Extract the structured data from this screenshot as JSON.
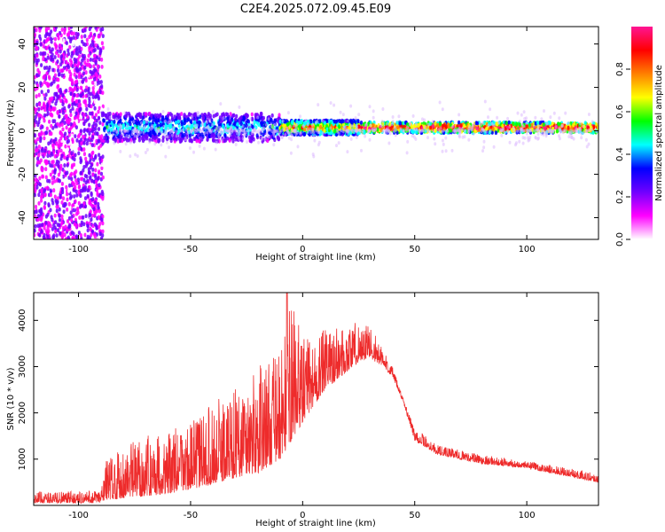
{
  "title": "C2E4.2025.072.09.45.E09",
  "colors": {
    "snr_line": "#ee2b2b",
    "background": "#ffffff",
    "axis": "#000000"
  },
  "chart_data": [
    {
      "type": "heatmap",
      "name": "spectrogram",
      "xlabel": "Height of straight line (km)",
      "ylabel": "Frequency (Hz)",
      "xlim": [
        -120,
        132
      ],
      "ylim": [
        -50,
        48
      ],
      "xticks": [
        -100,
        -50,
        0,
        50,
        100
      ],
      "yticks": [
        -40,
        -20,
        0,
        20,
        40
      ],
      "grid": false,
      "colorbar": {
        "label": "Normalized spectral amplitude",
        "range": [
          0,
          1
        ],
        "ticks": [
          0.0,
          0.2,
          0.4,
          0.6,
          0.8
        ],
        "colormap": [
          "#ffffff",
          "#ff00ff",
          "#7000ff",
          "#0000ff",
          "#00ffff",
          "#00ff00",
          "#ffff00",
          "#ff8000",
          "#ff0000",
          "#ff1493"
        ]
      },
      "features": [
        {
          "x_range": [
            -120,
            -89
          ],
          "frequency_range": [
            -50,
            48
          ],
          "amplitude": 0.15,
          "description_level": "broadband noise"
        },
        {
          "x_range": [
            -89,
            -10
          ],
          "frequency_center": 1.5,
          "frequency_halfwidth": 4,
          "amplitude": 0.45
        },
        {
          "x_range": [
            -10,
            25
          ],
          "frequency_center": 1.5,
          "frequency_halfwidth": 2,
          "amplitude": 0.75
        },
        {
          "x_range": [
            25,
            132
          ],
          "frequency_center": 1.5,
          "frequency_halfwidth": 1.5,
          "amplitude": 0.95
        }
      ]
    },
    {
      "type": "line",
      "name": "snr",
      "xlabel": "Height of straight line (km)",
      "ylabel": "SNR (10 * v/v)",
      "xlim": [
        -120,
        132
      ],
      "ylim": [
        0,
        4600
      ],
      "xticks": [
        -100,
        -50,
        0,
        50,
        100
      ],
      "yticks": [
        1000,
        2000,
        3000,
        4000
      ],
      "grid": false,
      "envelope": {
        "x": [
          -120,
          -100,
          -90,
          -88,
          -80,
          -70,
          -60,
          -50,
          -40,
          -30,
          -20,
          -10,
          -5,
          0,
          10,
          20,
          25,
          30,
          35,
          40,
          45,
          50,
          60,
          80,
          100,
          132
        ],
        "low": [
          50,
          50,
          50,
          120,
          150,
          200,
          250,
          350,
          450,
          600,
          700,
          1000,
          1400,
          1800,
          2500,
          2900,
          3100,
          3200,
          3000,
          2800,
          2200,
          1400,
          1100,
          900,
          800,
          500
        ],
        "high": [
          300,
          300,
          350,
          1000,
          1300,
          1500,
          1600,
          1800,
          2200,
          2600,
          3000,
          3300,
          4500,
          3600,
          3800,
          3900,
          4000,
          3900,
          3500,
          3000,
          2300,
          1700,
          1300,
          1100,
          950,
          700
        ]
      },
      "peak": {
        "x": -7,
        "y": 4600
      }
    }
  ]
}
